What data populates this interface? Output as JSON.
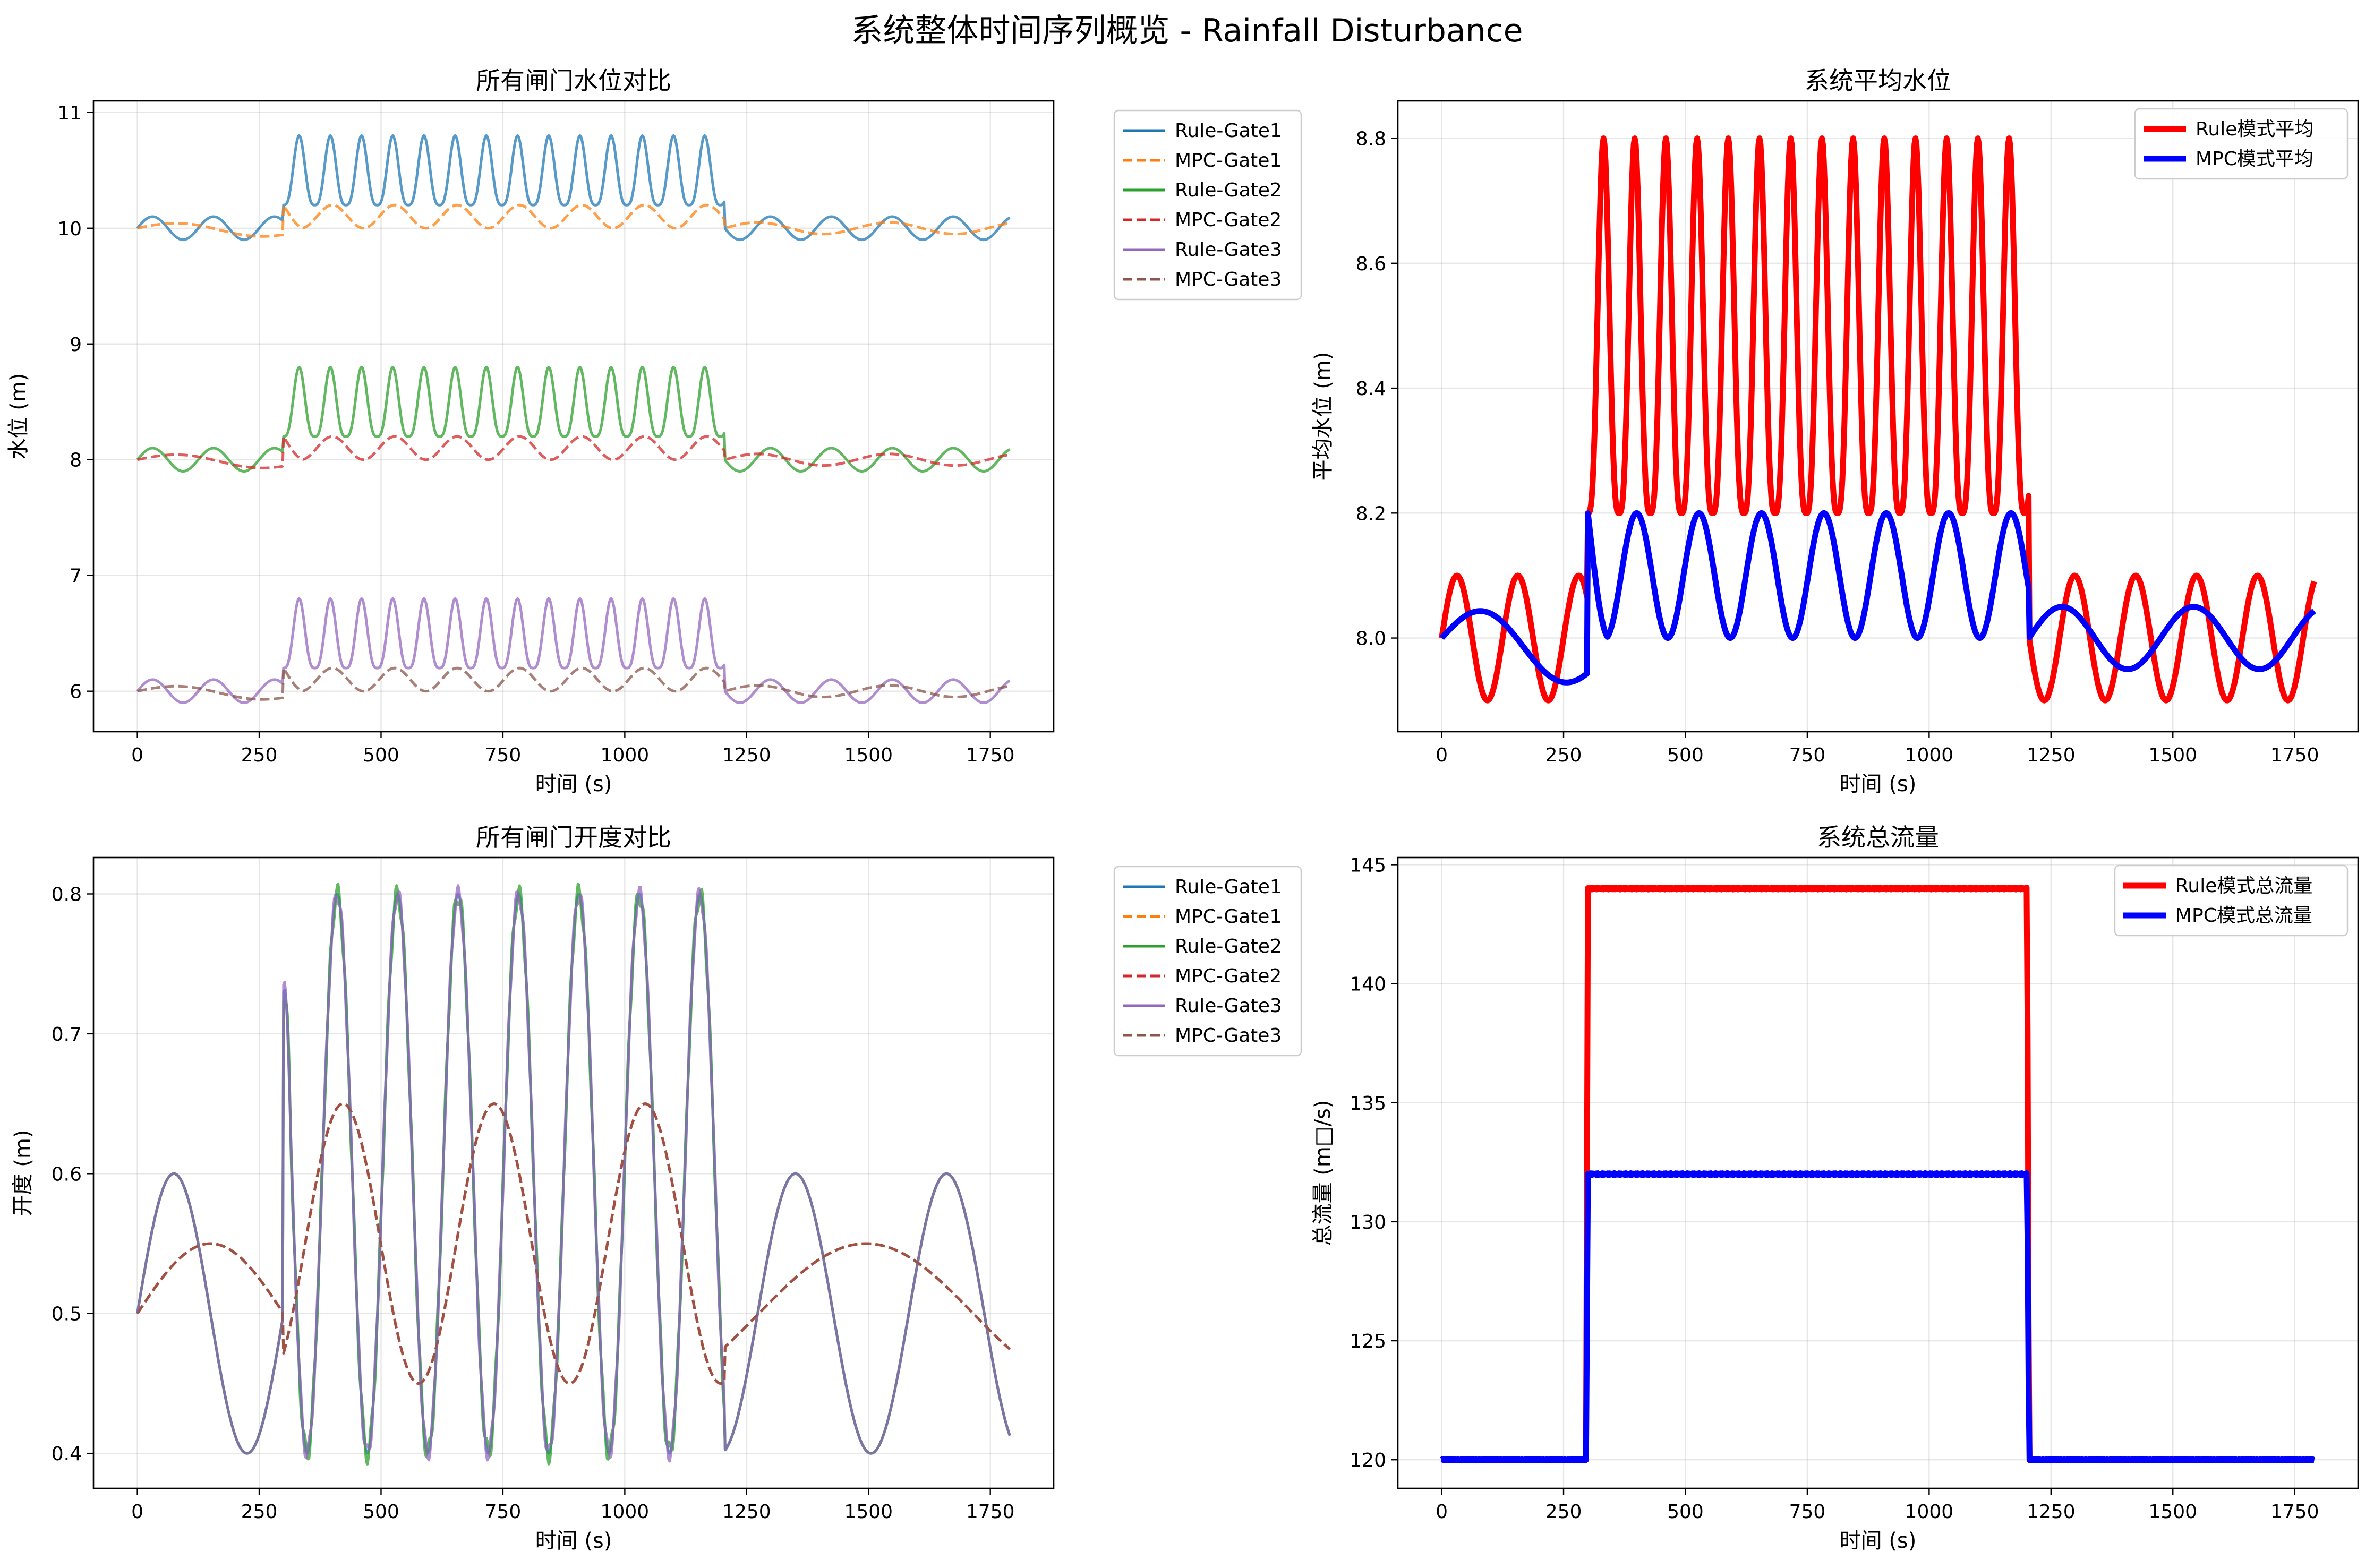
{
  "figure": {
    "title": "系统整体时间序列概览 - Rainfall Disturbance"
  },
  "chart_data": [
    {
      "id": "ax1",
      "type": "line",
      "title": "所有闸门水位对比",
      "xlabel": "时间 (s)",
      "ylabel": "水位 (m)",
      "xlim": [
        -90,
        1880
      ],
      "ylim": [
        5.65,
        11.1
      ],
      "xticks": [
        0,
        250,
        500,
        750,
        1000,
        1250,
        1500,
        1750
      ],
      "yticks": [
        6,
        7,
        8,
        9,
        10,
        11
      ],
      "xtick_labels": [
        "0",
        "250",
        "500",
        "750",
        "1000",
        "1250",
        "1500",
        "1750"
      ],
      "ytick_labels": [
        "6",
        "7",
        "8",
        "9",
        "10",
        "11"
      ],
      "legend_position": "outside-right",
      "series": [
        {
          "name": "Rule-Gate1",
          "color": "#1f77b4",
          "dash": false,
          "gen": {
            "kind": "rule_level",
            "base": 10
          }
        },
        {
          "name": "MPC-Gate1",
          "color": "#ff7f0e",
          "dash": true,
          "gen": {
            "kind": "mpc_level",
            "base": 10
          }
        },
        {
          "name": "Rule-Gate2",
          "color": "#2ca02c",
          "dash": false,
          "gen": {
            "kind": "rule_level",
            "base": 8
          }
        },
        {
          "name": "MPC-Gate2",
          "color": "#d62728",
          "dash": true,
          "gen": {
            "kind": "mpc_level",
            "base": 8
          }
        },
        {
          "name": "Rule-Gate3",
          "color": "#9467bd",
          "dash": false,
          "gen": {
            "kind": "rule_level",
            "base": 6
          }
        },
        {
          "name": "MPC-Gate3",
          "color": "#8c564b",
          "dash": true,
          "gen": {
            "kind": "mpc_level",
            "base": 6
          }
        }
      ]
    },
    {
      "id": "ax2",
      "type": "line",
      "title": "系统平均水位",
      "xlabel": "时间 (s)",
      "ylabel": "平均水位 (m)",
      "xlim": [
        -90,
        1880
      ],
      "ylim": [
        7.85,
        8.86
      ],
      "xticks": [
        0,
        250,
        500,
        750,
        1000,
        1250,
        1500,
        1750
      ],
      "yticks": [
        8.0,
        8.2,
        8.4,
        8.6,
        8.8
      ],
      "xtick_labels": [
        "0",
        "250",
        "500",
        "750",
        "1000",
        "1250",
        "1500",
        "1750"
      ],
      "ytick_labels": [
        "8.0",
        "8.2",
        "8.4",
        "8.6",
        "8.8"
      ],
      "legend_position": "upper-right",
      "series": [
        {
          "name": "Rule模式平均",
          "color": "#ff0000",
          "dash": false,
          "gen": {
            "kind": "rule_level",
            "base": 8
          }
        },
        {
          "name": "MPC模式平均",
          "color": "#0000ff",
          "dash": false,
          "gen": {
            "kind": "mpc_level",
            "base": 8
          }
        }
      ]
    },
    {
      "id": "ax3",
      "type": "line",
      "title": "所有闸门开度对比",
      "xlabel": "时间 (s)",
      "ylabel": "开度 (m)",
      "xlim": [
        -90,
        1880
      ],
      "ylim": [
        0.375,
        0.826
      ],
      "xticks": [
        0,
        250,
        500,
        750,
        1000,
        1250,
        1500,
        1750
      ],
      "yticks": [
        0.4,
        0.5,
        0.6,
        0.7,
        0.8
      ],
      "xtick_labels": [
        "0",
        "250",
        "500",
        "750",
        "1000",
        "1250",
        "1500",
        "1750"
      ],
      "ytick_labels": [
        "0.4",
        "0.5",
        "0.6",
        "0.7",
        "0.8"
      ],
      "legend_position": "outside-right",
      "series": [
        {
          "name": "Rule-Gate1",
          "color": "#1f77b4",
          "dash": false,
          "gen": {
            "kind": "rule_open",
            "jitter": 0.0
          }
        },
        {
          "name": "MPC-Gate1",
          "color": "#ff7f0e",
          "dash": true,
          "gen": {
            "kind": "mpc_open"
          }
        },
        {
          "name": "Rule-Gate2",
          "color": "#2ca02c",
          "dash": false,
          "gen": {
            "kind": "rule_open",
            "jitter": 0.008
          }
        },
        {
          "name": "MPC-Gate2",
          "color": "#d62728",
          "dash": true,
          "gen": {
            "kind": "mpc_open"
          }
        },
        {
          "name": "Rule-Gate3",
          "color": "#9467bd",
          "dash": false,
          "gen": {
            "kind": "rule_open",
            "jitter": -0.006
          }
        },
        {
          "name": "MPC-Gate3",
          "color": "#8c564b",
          "dash": true,
          "gen": {
            "kind": "mpc_open"
          }
        }
      ]
    },
    {
      "id": "ax4",
      "type": "line",
      "title": "系统总流量",
      "xlabel": "时间 (s)",
      "ylabel": "总流量 (m□/s)",
      "xlim": [
        -90,
        1880
      ],
      "ylim": [
        118.8,
        145.3
      ],
      "xticks": [
        0,
        250,
        500,
        750,
        1000,
        1250,
        1500,
        1750
      ],
      "yticks": [
        120,
        125,
        130,
        135,
        140,
        145
      ],
      "xtick_labels": [
        "0",
        "250",
        "500",
        "750",
        "1000",
        "1250",
        "1500",
        "1750"
      ],
      "ytick_labels": [
        "120",
        "125",
        "130",
        "135",
        "140",
        "145"
      ],
      "legend_position": "upper-right",
      "series": [
        {
          "name": "Rule模式总流量",
          "color": "#ff0000",
          "dash": false,
          "gen": {
            "kind": "flow",
            "base": 120,
            "high": 144
          }
        },
        {
          "name": "MPC模式总流量",
          "color": "#0000ff",
          "dash": false,
          "gen": {
            "kind": "flow",
            "base": 120,
            "high": 132
          }
        }
      ]
    }
  ]
}
